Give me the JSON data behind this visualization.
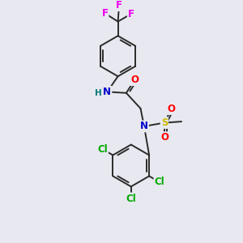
{
  "bg_color": "#e8e8f0",
  "bond_color": "#2a2a2a",
  "bond_width": 1.4,
  "atom_colors": {
    "F": "#ee00ee",
    "O": "#ff0000",
    "N": "#0000cc",
    "S": "#ccbb00",
    "Cl": "#00aa00",
    "H": "#007777",
    "C": "#2a2a2a"
  },
  "font_size": 8.5
}
